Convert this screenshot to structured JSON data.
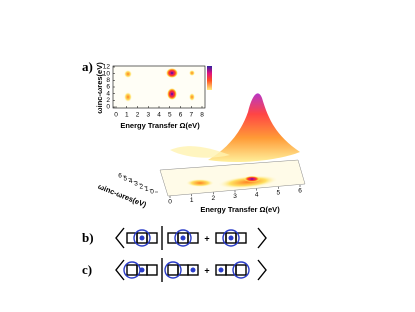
{
  "panel_a": {
    "label": "a)",
    "inset": {
      "y_label": "ωinc-ωres(eV)",
      "yticks": [
        0,
        2,
        4,
        6,
        8,
        10,
        12
      ],
      "x_label": "Energy Transfer Ω(eV)",
      "xticks": [
        0,
        1,
        2,
        3,
        4,
        5,
        6,
        7,
        8
      ]
    },
    "surface": {
      "y_label": "ωinc-ωres(eV)",
      "yticks": [
        6,
        5,
        4,
        3,
        2,
        1,
        0
      ],
      "x_label": "Energy Transfer Ω(eV)",
      "xticks": [
        0,
        1,
        2,
        3,
        4,
        5,
        6
      ]
    }
  },
  "panel_b": {
    "label": "b)",
    "operator": "+"
  },
  "panel_c": {
    "label": "c)",
    "operator": "+"
  }
}
